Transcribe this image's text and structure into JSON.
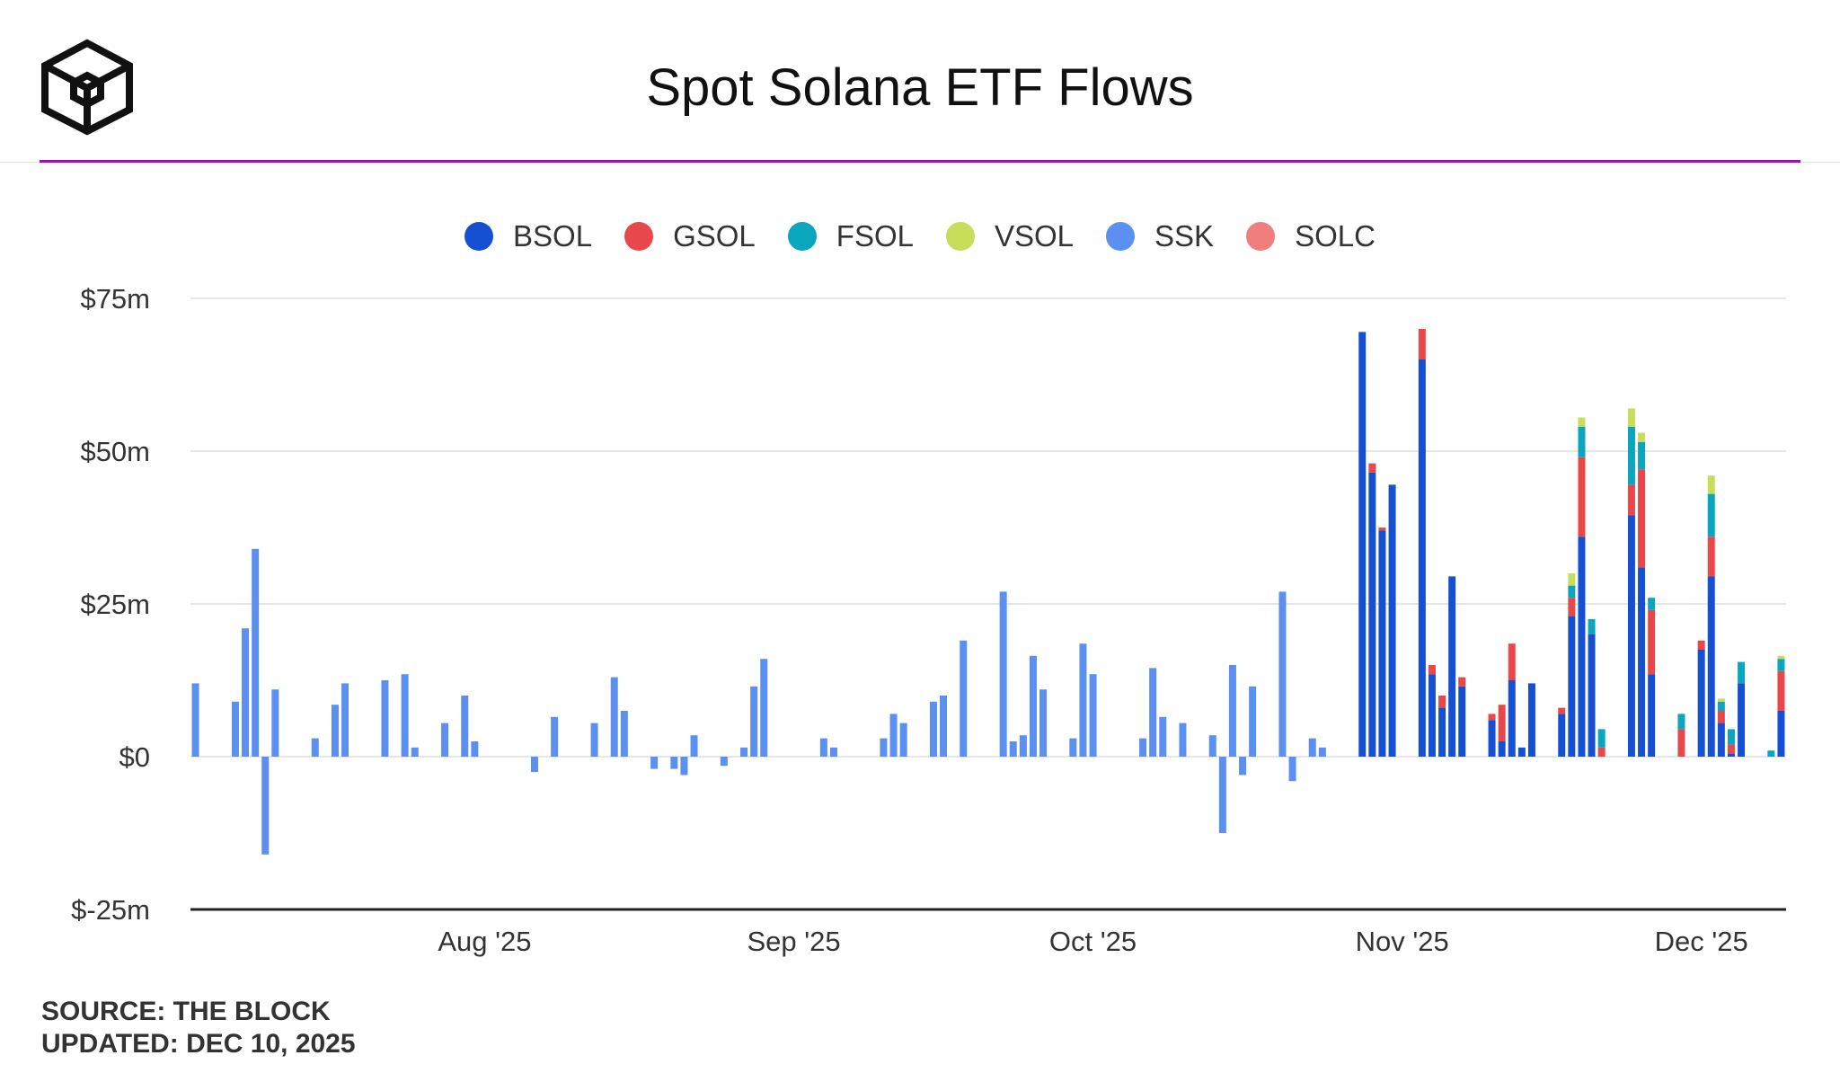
{
  "header": {
    "title": "Spot Solana ETF Flows"
  },
  "logo": {
    "icon": "the-block-cube-icon"
  },
  "colors": {
    "accent": "#a30bbf",
    "grid": "#e6e6e6",
    "axis": "#222222"
  },
  "chart_data": {
    "type": "bar",
    "stacked": true,
    "title": "Spot Solana ETF Flows",
    "ylabel": "",
    "xlabel": "",
    "ylim": [
      -25,
      75
    ],
    "yticks": [
      {
        "value": 75,
        "label": "$75m"
      },
      {
        "value": 50,
        "label": "$50m"
      },
      {
        "value": 25,
        "label": "$25m"
      },
      {
        "value": 0,
        "label": "$0"
      },
      {
        "value": -25,
        "label": "$-25m"
      }
    ],
    "xlim": [
      0,
      160
    ],
    "xticks": [
      {
        "pos": 29.5,
        "label": "Aug '25"
      },
      {
        "pos": 60.5,
        "label": "Sep '25"
      },
      {
        "pos": 90.5,
        "label": "Oct '25"
      },
      {
        "pos": 121.5,
        "label": "Nov '25"
      },
      {
        "pos": 151.5,
        "label": "Dec '25"
      }
    ],
    "legend": {
      "position": "top-center"
    },
    "series": [
      {
        "name": "BSOL",
        "color": "#1650d2"
      },
      {
        "name": "GSOL",
        "color": "#e8484a"
      },
      {
        "name": "FSOL",
        "color": "#0aa6bd"
      },
      {
        "name": "VSOL",
        "color": "#c8dd5a"
      },
      {
        "name": "SSK",
        "color": "#5b8ff0"
      },
      {
        "name": "SOLC",
        "color": "#f07e7c"
      }
    ],
    "bars": [
      {
        "day": 0.5,
        "SSK": 12
      },
      {
        "day": 4.5,
        "SSK": 9
      },
      {
        "day": 5.5,
        "SSK": 21
      },
      {
        "day": 6.5,
        "SSK": 34
      },
      {
        "day": 7.5,
        "SSK": -16
      },
      {
        "day": 8.5,
        "SSK": 11
      },
      {
        "day": 12.5,
        "SSK": 3
      },
      {
        "day": 14.5,
        "SSK": 8.5
      },
      {
        "day": 15.5,
        "SSK": 12
      },
      {
        "day": 19.5,
        "SSK": 12.5
      },
      {
        "day": 21.5,
        "SSK": 13.5
      },
      {
        "day": 22.5,
        "SSK": 1.5
      },
      {
        "day": 25.5,
        "SSK": 5.5
      },
      {
        "day": 27.5,
        "SSK": 10
      },
      {
        "day": 28.5,
        "SSK": 2.5
      },
      {
        "day": 34.5,
        "SSK": -2.5
      },
      {
        "day": 36.5,
        "SSK": 6.5
      },
      {
        "day": 40.5,
        "SSK": 5.5
      },
      {
        "day": 42.5,
        "SSK": 13
      },
      {
        "day": 43.5,
        "SSK": 7.5
      },
      {
        "day": 46.5,
        "SSK": -2
      },
      {
        "day": 48.5,
        "SSK": -2
      },
      {
        "day": 49.5,
        "SSK": -3
      },
      {
        "day": 50.5,
        "SSK": 3.5
      },
      {
        "day": 53.5,
        "SSK": -1.5
      },
      {
        "day": 55.5,
        "SSK": 1.5
      },
      {
        "day": 56.5,
        "SSK": 11.5
      },
      {
        "day": 57.5,
        "SSK": 16
      },
      {
        "day": 63.5,
        "SSK": 3
      },
      {
        "day": 64.5,
        "SSK": 1.5
      },
      {
        "day": 69.5,
        "SSK": 3
      },
      {
        "day": 70.5,
        "SSK": 7
      },
      {
        "day": 71.5,
        "SSK": 5.5
      },
      {
        "day": 74.5,
        "SSK": 9
      },
      {
        "day": 75.5,
        "SSK": 10
      },
      {
        "day": 77.5,
        "SSK": 19
      },
      {
        "day": 81.5,
        "SSK": 27
      },
      {
        "day": 82.5,
        "SSK": 2.5
      },
      {
        "day": 83.5,
        "SSK": 3.5
      },
      {
        "day": 84.5,
        "SSK": 16.5
      },
      {
        "day": 85.5,
        "SSK": 11
      },
      {
        "day": 88.5,
        "SSK": 3
      },
      {
        "day": 89.5,
        "SSK": 18.5
      },
      {
        "day": 90.5,
        "SSK": 13.5
      },
      {
        "day": 95.5,
        "SSK": 3
      },
      {
        "day": 96.5,
        "SSK": 14.5
      },
      {
        "day": 97.5,
        "SSK": 6.5
      },
      {
        "day": 99.5,
        "SSK": 5.5
      },
      {
        "day": 102.5,
        "SSK": 3.5
      },
      {
        "day": 103.5,
        "SSK": -12.5
      },
      {
        "day": 104.5,
        "SSK": 15
      },
      {
        "day": 105.5,
        "SSK": -3
      },
      {
        "day": 106.5,
        "SSK": 11.5
      },
      {
        "day": 109.5,
        "SSK": 27
      },
      {
        "day": 110.5,
        "SSK": -4
      },
      {
        "day": 112.5,
        "SSK": 3
      },
      {
        "day": 113.5,
        "SSK": 1.5
      },
      {
        "day": 117.5,
        "BSOL": 69.5
      },
      {
        "day": 118.5,
        "BSOL": 46.5,
        "GSOL": 1.5
      },
      {
        "day": 119.5,
        "BSOL": 37,
        "GSOL": 0.5
      },
      {
        "day": 120.5,
        "BSOL": 44.5
      },
      {
        "day": 123.5,
        "BSOL": 65,
        "GSOL": 5
      },
      {
        "day": 124.5,
        "BSOL": 13.5,
        "GSOL": 1.5
      },
      {
        "day": 125.5,
        "BSOL": 8,
        "GSOL": 2
      },
      {
        "day": 126.5,
        "BSOL": 29.5
      },
      {
        "day": 127.5,
        "BSOL": 11.5,
        "GSOL": 1.5
      },
      {
        "day": 130.5,
        "BSOL": 6,
        "GSOL": 1
      },
      {
        "day": 131.5,
        "BSOL": 2.5,
        "GSOL": 6
      },
      {
        "day": 132.5,
        "BSOL": 12.5,
        "GSOL": 6
      },
      {
        "day": 133.5,
        "BSOL": 1.5
      },
      {
        "day": 134.5,
        "BSOL": 12
      },
      {
        "day": 137.5,
        "BSOL": 7,
        "GSOL": 1
      },
      {
        "day": 138.5,
        "BSOL": 23,
        "GSOL": 3,
        "FSOL": 2,
        "VSOL": 2
      },
      {
        "day": 139.5,
        "BSOL": 36,
        "GSOL": 13,
        "FSOL": 5,
        "VSOL": 1.5
      },
      {
        "day": 140.5,
        "BSOL": 20,
        "FSOL": 2.5
      },
      {
        "day": 141.5,
        "GSOL": 1.5,
        "FSOL": 3
      },
      {
        "day": 144.5,
        "BSOL": 39.5,
        "GSOL": 5,
        "FSOL": 9.5,
        "VSOL": 3
      },
      {
        "day": 145.5,
        "BSOL": 31,
        "GSOL": 16,
        "FSOL": 4.5,
        "VSOL": 1.5
      },
      {
        "day": 146.5,
        "BSOL": 13.5,
        "GSOL": 10.5,
        "FSOL": 2
      },
      {
        "day": 149.5,
        "GSOL": 4.5,
        "FSOL": 2.5
      },
      {
        "day": 151.5,
        "BSOL": 17.5,
        "GSOL": 1.5
      },
      {
        "day": 152.5,
        "BSOL": 29.5,
        "GSOL": 6.5,
        "FSOL": 7,
        "VSOL": 3
      },
      {
        "day": 153.5,
        "BSOL": 5.5,
        "GSOL": 2,
        "FSOL": 1.5,
        "VSOL": 0.5
      },
      {
        "day": 154.5,
        "BSOL": 0.5,
        "GSOL": 1.5,
        "FSOL": 2.5
      },
      {
        "day": 155.5,
        "BSOL": 12,
        "FSOL": 3.5
      },
      {
        "day": 158.5,
        "FSOL": 1
      },
      {
        "day": 159.5,
        "BSOL": 7.5,
        "GSOL": 6.5,
        "FSOL": 2,
        "VSOL": 0.5
      }
    ]
  },
  "footer": {
    "source": "SOURCE: THE BLOCK",
    "updated": "UPDATED: DEC 10, 2025"
  }
}
